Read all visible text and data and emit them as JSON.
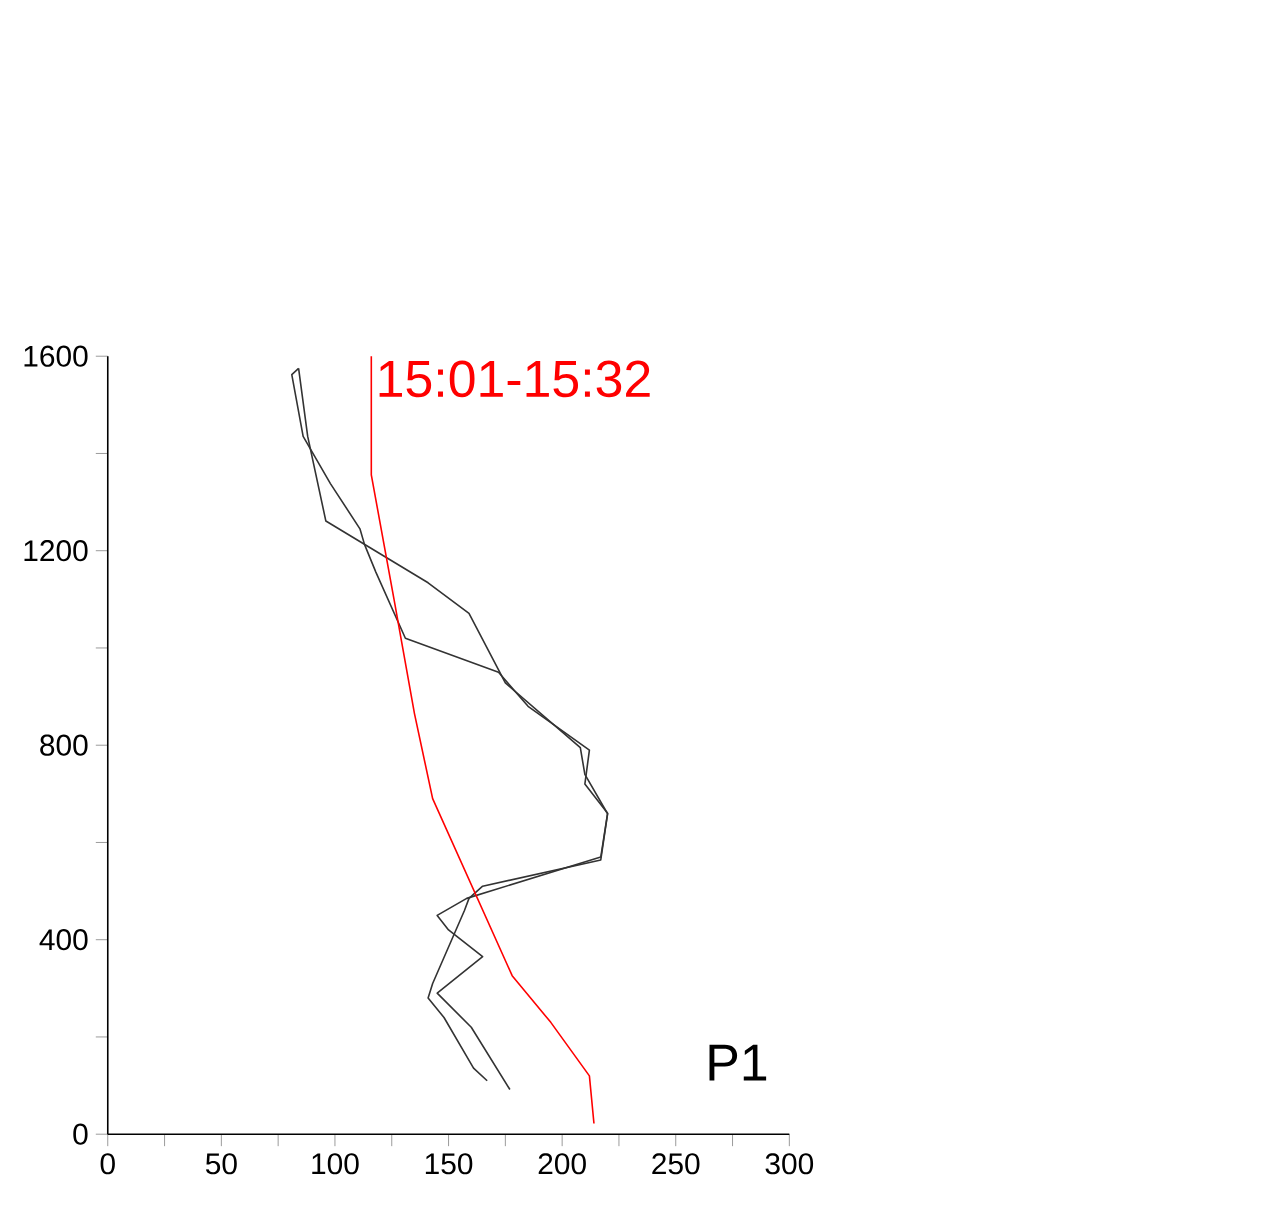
{
  "chart_data": {
    "type": "line",
    "xlim": [
      0,
      300
    ],
    "ylim": [
      0,
      1600
    ],
    "xticks": [
      0,
      {
        "value": 25,
        "label": null
      },
      50,
      {
        "value": 75,
        "label": null
      },
      100,
      {
        "value": 125,
        "label": null
      },
      150,
      {
        "value": 175,
        "label": null
      },
      200,
      {
        "value": 225,
        "label": null
      },
      250,
      {
        "value": 275,
        "label": null
      },
      300
    ],
    "yticks": [
      0,
      {
        "value": 200,
        "label": null
      },
      400,
      {
        "value": 600,
        "label": null
      },
      800,
      {
        "value": 1000,
        "label": null
      },
      1200,
      {
        "value": 1400,
        "label": null
      },
      1600
    ],
    "grid": false,
    "legend": false,
    "marker": "none",
    "line_style": "solid",
    "annotations": [
      "P1"
    ],
    "series": [
      {
        "color": "#333333",
        "x": [
          177,
          160,
          145,
          165,
          150,
          145,
          158,
          217,
          220,
          210,
          212,
          185,
          172,
          131,
          118,
          113,
          111,
          98,
          86,
          81,
          84
        ],
        "values": [
          92,
          220,
          290,
          365,
          420,
          450,
          485,
          570,
          660,
          720,
          790,
          880,
          950,
          1020,
          1156,
          1213,
          1245,
          1338,
          1435,
          1562,
          1575
        ]
      },
      {
        "color": "#333333",
        "x": [
          84,
          88,
          96,
          141,
          159,
          175,
          208,
          210,
          220,
          217,
          165,
          159,
          157,
          143,
          141,
          148,
          161,
          167
        ],
        "values": [
          1575,
          1435,
          1261,
          1134,
          1071,
          928,
          795,
          740,
          659,
          564,
          510,
          485,
          460,
          310,
          280,
          240,
          136,
          110
        ]
      },
      {
        "name": "15:01-15:32",
        "color": "#ff0000",
        "x": [
          214,
          212,
          195,
          178,
          143,
          135,
          126,
          116,
          116
        ],
        "values": [
          22,
          120,
          230,
          326,
          690,
          865,
          1100,
          1356,
          1600
        ]
      }
    ]
  }
}
